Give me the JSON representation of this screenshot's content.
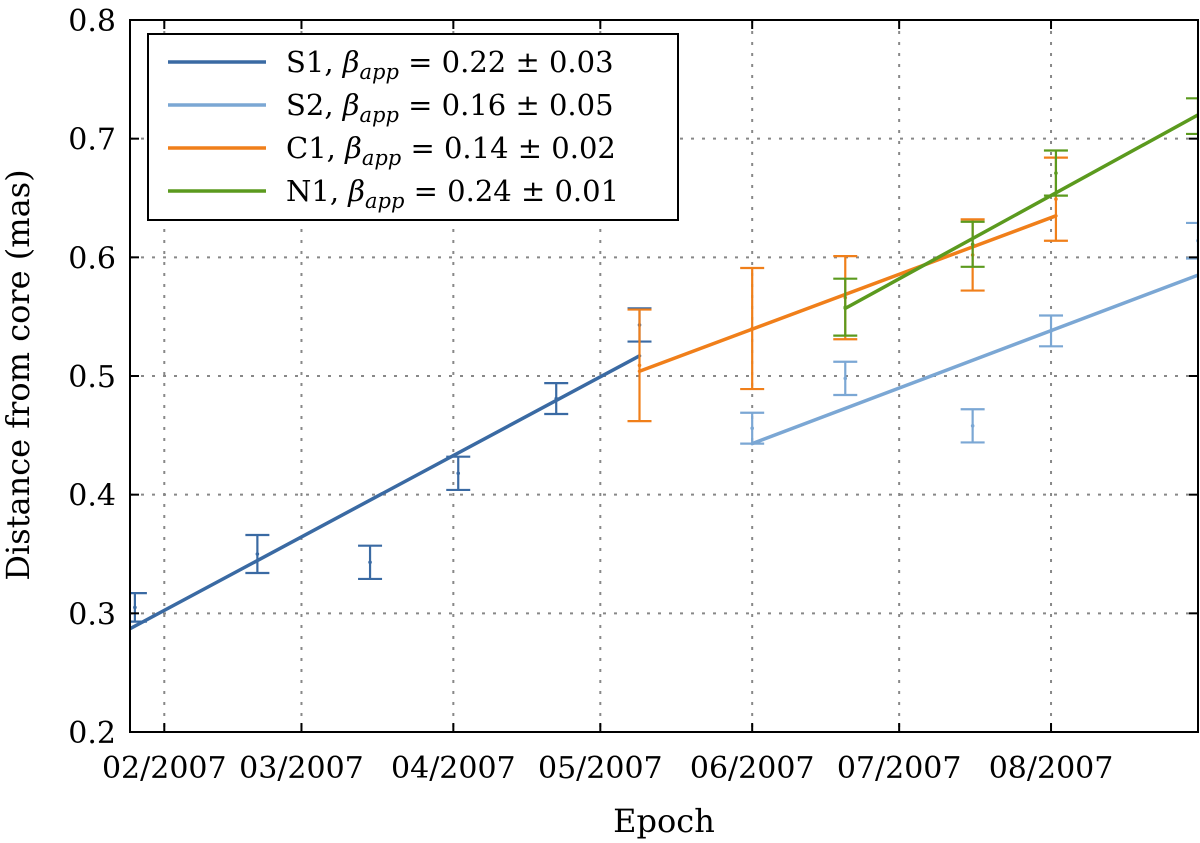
{
  "chart_data": {
    "type": "line",
    "xlabel": "Epoch",
    "ylabel": "Distance from core (mas)",
    "x_unit": "date",
    "xlim": [
      "2007-01-25",
      "2007-08-31"
    ],
    "ylim": [
      0.2,
      0.8
    ],
    "x_ticks": [
      {
        "date": "2007-02-01",
        "label": "02/2007"
      },
      {
        "date": "2007-03-01",
        "label": "03/2007"
      },
      {
        "date": "2007-04-01",
        "label": "04/2007"
      },
      {
        "date": "2007-05-01",
        "label": "05/2007"
      },
      {
        "date": "2007-06-01",
        "label": "06/2007"
      },
      {
        "date": "2007-07-01",
        "label": "07/2007"
      },
      {
        "date": "2007-08-01",
        "label": "08/2007"
      }
    ],
    "y_ticks": [
      "0.2",
      "0.3",
      "0.4",
      "0.5",
      "0.6",
      "0.7",
      "0.8"
    ],
    "grid": true,
    "legend_position": "top-left",
    "series": [
      {
        "name": "S1, β_app = 0.22 ± 0.03",
        "legend_main": "S1, ",
        "legend_rest": " = 0.22 ± 0.03",
        "color": "#3a6aa3",
        "points": [
          {
            "x": "2007-01-26",
            "y": 0.305,
            "err": 0.012
          },
          {
            "x": "2007-02-20",
            "y": 0.35,
            "err": 0.016
          },
          {
            "x": "2007-03-15",
            "y": 0.343,
            "err": 0.014
          },
          {
            "x": "2007-04-02",
            "y": 0.418,
            "err": 0.014
          },
          {
            "x": "2007-04-22",
            "y": 0.481,
            "err": 0.013
          },
          {
            "x": "2007-05-09",
            "y": 0.543,
            "err": 0.014
          }
        ],
        "fit": [
          {
            "x": "2007-01-25",
            "y": 0.287
          },
          {
            "x": "2007-05-09",
            "y": 0.517
          }
        ]
      },
      {
        "name": "S2, β_app = 0.16 ± 0.05",
        "legend_main": "S2, ",
        "legend_rest": " = 0.16 ± 0.05",
        "color": "#7ba7d4",
        "points": [
          {
            "x": "2007-06-01",
            "y": 0.456,
            "err": 0.013
          },
          {
            "x": "2007-06-20",
            "y": 0.498,
            "err": 0.014
          },
          {
            "x": "2007-07-16",
            "y": 0.458,
            "err": 0.014
          },
          {
            "x": "2007-08-01",
            "y": 0.538,
            "err": 0.013
          },
          {
            "x": "2007-08-31",
            "y": 0.614,
            "err": 0.015
          }
        ],
        "fit": [
          {
            "x": "2007-06-01",
            "y": 0.443
          },
          {
            "x": "2007-08-31",
            "y": 0.585
          }
        ]
      },
      {
        "name": "C1, β_app = 0.14 ± 0.02",
        "legend_main": "C1, ",
        "legend_rest": " = 0.14 ± 0.02",
        "color": "#f07f1a",
        "points": [
          {
            "x": "2007-05-09",
            "y": 0.509,
            "err": 0.047
          },
          {
            "x": "2007-06-01",
            "y": 0.54,
            "err": 0.051
          },
          {
            "x": "2007-06-20",
            "y": 0.566,
            "err": 0.035
          },
          {
            "x": "2007-07-16",
            "y": 0.602,
            "err": 0.03
          },
          {
            "x": "2007-08-02",
            "y": 0.649,
            "err": 0.035
          }
        ],
        "fit": [
          {
            "x": "2007-05-09",
            "y": 0.504
          },
          {
            "x": "2007-08-02",
            "y": 0.635
          }
        ]
      },
      {
        "name": "N1, β_app = 0.24 ± 0.01",
        "legend_main": "N1, ",
        "legend_rest": " = 0.24 ± 0.01",
        "color": "#5b9a1e",
        "points": [
          {
            "x": "2007-06-20",
            "y": 0.558,
            "err": 0.024
          },
          {
            "x": "2007-07-16",
            "y": 0.611,
            "err": 0.019
          },
          {
            "x": "2007-08-02",
            "y": 0.671,
            "err": 0.019
          },
          {
            "x": "2007-08-31",
            "y": 0.719,
            "err": 0.015
          }
        ],
        "fit": [
          {
            "x": "2007-06-20",
            "y": 0.557
          },
          {
            "x": "2007-08-31",
            "y": 0.72
          }
        ]
      }
    ]
  }
}
